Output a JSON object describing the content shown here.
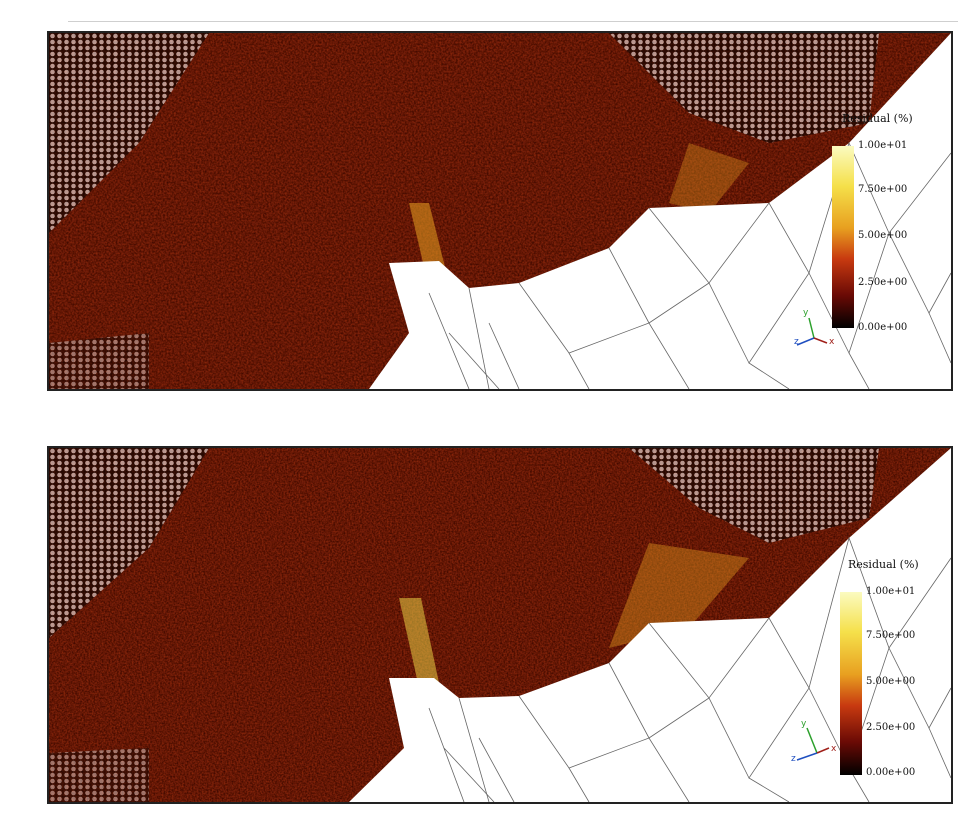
{
  "panels": [
    {
      "id": "panel-1",
      "colorbar": {
        "title": "Residual (%)",
        "ticks": [
          "1.00e+01",
          "7.50e+00",
          "5.00e+00",
          "2.50e+00",
          "0.00e+00"
        ],
        "colors": [
          "#fbfbc0",
          "#f5e04a",
          "#e8a020",
          "#c83a10",
          "#6a0a05",
          "#000000"
        ]
      },
      "axes_triad": {
        "y": "y",
        "z": "z",
        "x": "x"
      }
    },
    {
      "id": "panel-2",
      "colorbar": {
        "title": "Residual (%)",
        "ticks": [
          "1.00e+01",
          "7.50e+00",
          "5.00e+00",
          "2.50e+00",
          "0.00e+00"
        ],
        "colors": [
          "#fbfbc0",
          "#f5e04a",
          "#e8a020",
          "#c83a10",
          "#6a0a05",
          "#000000"
        ]
      },
      "axes_triad": {
        "y": "y",
        "z": "z",
        "x": "x"
      }
    }
  ]
}
